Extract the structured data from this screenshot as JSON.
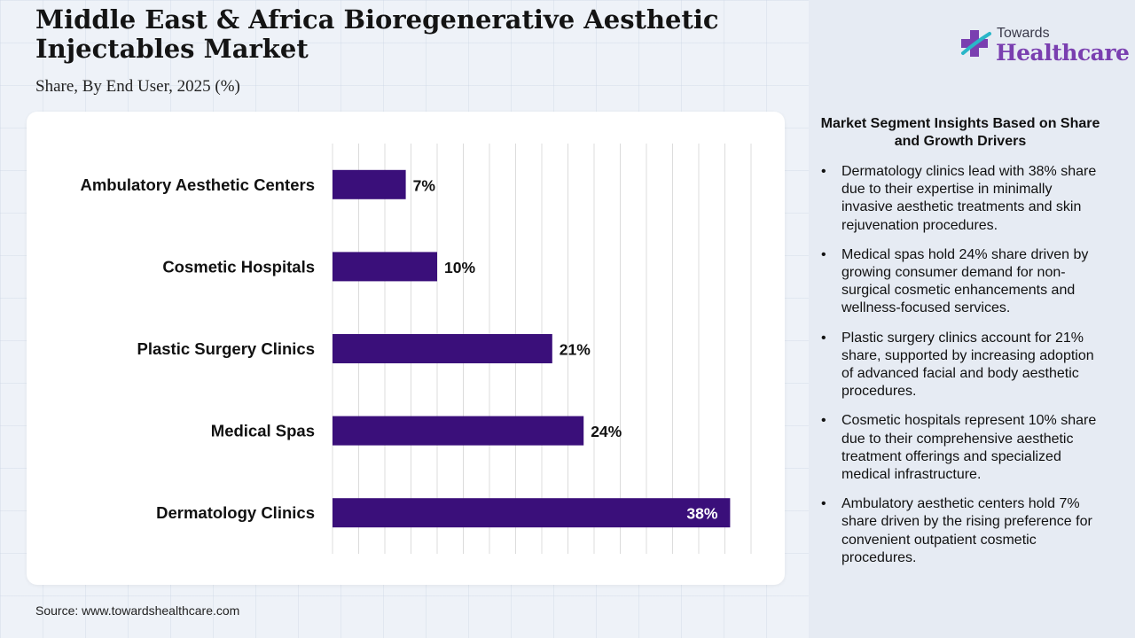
{
  "header": {
    "title": "Middle East & Africa Bioregenerative Aesthetic Injectables Market",
    "subtitle": "Share, By End User, 2025 (%)"
  },
  "logo": {
    "top_text": "Towards",
    "main_text": "Healthcare"
  },
  "chart_data": {
    "type": "bar",
    "orientation": "horizontal",
    "categories": [
      "Ambulatory Aesthetic Centers",
      "Cosmetic Hospitals",
      "Plastic Surgery Clinics",
      "Medical Spas",
      "Dermatology Clinics"
    ],
    "values": [
      7,
      10,
      21,
      24,
      38
    ],
    "value_labels": [
      "7%",
      "10%",
      "21%",
      "24%",
      "38%"
    ],
    "xlim": [
      0,
      40
    ],
    "grid": true,
    "bar_color": "#3a0f7a"
  },
  "insights": {
    "title": "Market Segment Insights Based on Share and Growth Drivers",
    "items": [
      "Dermatology clinics lead with 38% share due to their expertise in minimally invasive aesthetic treatments and skin rejuvenation procedures.",
      "Medical spas hold 24% share driven by growing consumer demand for non-surgical cosmetic enhancements and wellness-focused services.",
      "Plastic surgery clinics account for 21% share, supported by increasing adoption of advanced facial and body aesthetic procedures.",
      "Cosmetic hospitals represent 10% share due to their comprehensive aesthetic treatment offerings and specialized medical infrastructure.",
      "Ambulatory aesthetic centers hold 7% share driven by the rising preference for convenient outpatient cosmetic procedures."
    ]
  },
  "footer": {
    "source": "Source: www.towardshealthcare.com"
  }
}
